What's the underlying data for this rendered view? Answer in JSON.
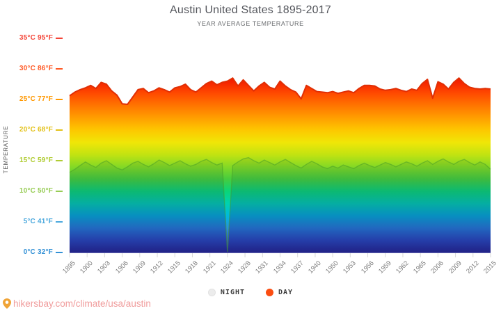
{
  "header": {
    "title": "Austin United States 1895-2017",
    "subtitle": "YEAR AVERAGE TEMPERATURE"
  },
  "y_axis": {
    "title": "TEMPERATURE",
    "labels": [
      {
        "value": 35,
        "celsius": "35°C",
        "fahrenheit": "95°F",
        "color": "#f44336"
      },
      {
        "value": 30,
        "celsius": "30°C",
        "fahrenheit": "86°F",
        "color": "#ff5722"
      },
      {
        "value": 25,
        "celsius": "25°C",
        "fahrenheit": "77°F",
        "color": "#ff9800"
      },
      {
        "value": 20,
        "celsius": "20°C",
        "fahrenheit": "68°F",
        "color": "#e3c117"
      },
      {
        "value": 15,
        "celsius": "15°C",
        "fahrenheit": "59°F",
        "color": "#b0cc33"
      },
      {
        "value": 10,
        "celsius": "10°C",
        "fahrenheit": "50°F",
        "color": "#97cc55"
      },
      {
        "value": 5,
        "celsius": "5°C",
        "fahrenheit": "41°F",
        "color": "#4aa8dd"
      },
      {
        "value": 0,
        "celsius": "0°C",
        "fahrenheit": "32°F",
        "color": "#3391d6"
      }
    ]
  },
  "legend": {
    "items": [
      {
        "label": "NIGHT",
        "color": "#ececec"
      },
      {
        "label": "DAY",
        "color": "#fb4d11"
      }
    ]
  },
  "footer": {
    "url": "hikersbay.com/climate/usa/austin",
    "pin_color": "#f0a437",
    "text_color": "#f09b9b"
  },
  "chart_data": {
    "type": "area",
    "title": "Austin United States 1895-2017",
    "subtitle": "YEAR AVERAGE TEMPERATURE",
    "ylabel": "TEMPERATURE",
    "y_unit": "°C",
    "ylim": [
      0,
      35
    ],
    "y_ticks_celsius": [
      0,
      5,
      10,
      15,
      20,
      25,
      30,
      35
    ],
    "grid": false,
    "legend_position": "bottom",
    "x_tick_labels": [
      "1895",
      "1900",
      "1903",
      "1906",
      "1909",
      "1912",
      "1915",
      "1918",
      "1921",
      "1924",
      "1928",
      "1931",
      "1934",
      "1937",
      "1940",
      "1950",
      "1953",
      "1956",
      "1959",
      "1962",
      "1965",
      "2006",
      "2009",
      "2012",
      "2015"
    ],
    "note": "NIGHT series drops to 0 at the 1924 tick (missing-data stripe)",
    "series": [
      {
        "name": "DAY",
        "color": "#fb4d11",
        "stroke": "#e02f05",
        "values": [
          25.6,
          26.2,
          26.6,
          26.9,
          27.3,
          26.8,
          27.8,
          27.5,
          26.4,
          25.7,
          24.3,
          24.2,
          25.4,
          26.6,
          26.8,
          26.1,
          26.4,
          26.9,
          26.6,
          26.2,
          26.9,
          27.1,
          27.5,
          26.6,
          26.2,
          26.9,
          27.6,
          28.0,
          27.4,
          27.8,
          28.0,
          28.5,
          27.2,
          28.2,
          27.3,
          26.4,
          27.2,
          27.8,
          27.0,
          26.7,
          28.0,
          27.2,
          26.6,
          26.2,
          25.1,
          27.3,
          26.8,
          26.3,
          26.2,
          26.1,
          26.3,
          26.0,
          26.2,
          26.4,
          26.1,
          26.8,
          27.3,
          27.3,
          27.2,
          26.7,
          26.5,
          26.6,
          26.8,
          26.5,
          26.3,
          26.7,
          26.5,
          27.6,
          28.3,
          25.2,
          27.9,
          27.5,
          26.7,
          27.8,
          28.5,
          27.6,
          27.0,
          26.8,
          26.7,
          26.8,
          26.7
        ]
      },
      {
        "name": "NIGHT",
        "color": "#ececec",
        "stroke": "rgba(70,155,40,0.5)",
        "values": [
          13.1,
          13.6,
          14.2,
          14.8,
          14.3,
          13.9,
          14.6,
          15.0,
          14.4,
          13.8,
          13.5,
          14.0,
          14.6,
          14.9,
          14.4,
          14.0,
          14.5,
          15.1,
          14.7,
          14.2,
          14.6,
          15.0,
          14.5,
          14.1,
          14.4,
          14.9,
          15.2,
          14.7,
          14.3,
          14.6,
          0,
          14.2,
          14.8,
          15.3,
          15.5,
          15.0,
          14.6,
          15.1,
          14.7,
          14.3,
          14.8,
          15.2,
          14.7,
          14.2,
          13.8,
          14.4,
          14.9,
          14.5,
          14.0,
          13.7,
          14.1,
          13.8,
          14.3,
          14.0,
          13.7,
          14.2,
          14.6,
          14.2,
          13.9,
          14.3,
          14.7,
          14.4,
          14.0,
          14.4,
          14.8,
          14.5,
          14.1,
          14.6,
          15.0,
          14.4,
          14.9,
          15.3,
          14.8,
          14.4,
          14.9,
          15.2,
          14.7,
          14.3,
          14.8,
          14.4,
          13.6
        ]
      }
    ],
    "gradient": [
      {
        "t": 35,
        "c": "#e81309"
      },
      {
        "t": 30,
        "c": "#e81309"
      },
      {
        "t": 28,
        "c": "#f42000"
      },
      {
        "t": 26,
        "c": "#ff4a00"
      },
      {
        "t": 24,
        "c": "#ff7500"
      },
      {
        "t": 22,
        "c": "#ff9e00"
      },
      {
        "t": 20,
        "c": "#fdc800"
      },
      {
        "t": 18,
        "c": "#f0e607"
      },
      {
        "t": 16,
        "c": "#c2e311"
      },
      {
        "t": 14,
        "c": "#84d925"
      },
      {
        "t": 12,
        "c": "#46cc3e"
      },
      {
        "t": 10,
        "c": "#0ad478"
      },
      {
        "t": 8,
        "c": "#00d2b0"
      },
      {
        "t": 6,
        "c": "#00b9dc"
      },
      {
        "t": 4,
        "c": "#278fdb"
      },
      {
        "t": 2,
        "c": "#3057c9"
      },
      {
        "t": 0,
        "c": "#2c2e9b"
      }
    ]
  }
}
